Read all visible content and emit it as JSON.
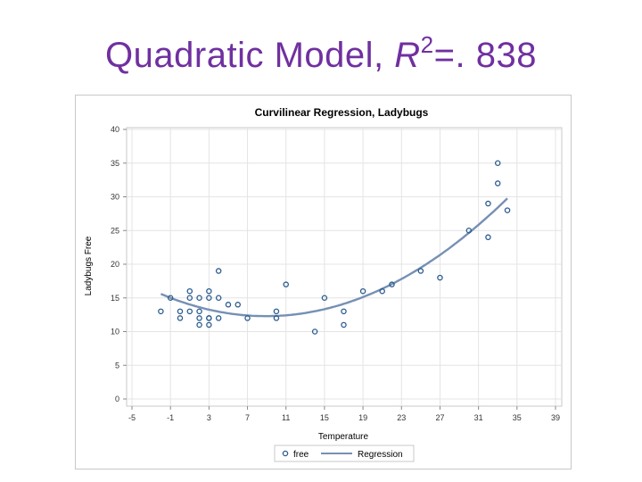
{
  "slide": {
    "title_prefix": "Quadratic Model, ",
    "title_r": "R",
    "title_sup": "2",
    "title_suffix": "=. 838",
    "title_color": "#7030a0"
  },
  "chart_data": {
    "type": "scatter",
    "title": "Curvilinear Regression, Ladybugs",
    "xlabel": "Temperature",
    "ylabel": "Ladybugs Free",
    "xlim": [
      -5,
      39
    ],
    "ylim": [
      0,
      40
    ],
    "xticks": [
      -5,
      -1,
      3,
      7,
      11,
      15,
      19,
      23,
      27,
      31,
      35,
      39
    ],
    "yticks": [
      0,
      5,
      10,
      15,
      20,
      25,
      30,
      35,
      40
    ],
    "grid": true,
    "legend_position": "bottom",
    "series": [
      {
        "name": "free",
        "kind": "points",
        "color": "#2a5b8f",
        "points": [
          [
            -2,
            13
          ],
          [
            -1,
            15
          ],
          [
            0,
            13
          ],
          [
            0,
            12
          ],
          [
            1,
            16
          ],
          [
            1,
            15
          ],
          [
            1,
            13
          ],
          [
            2,
            15
          ],
          [
            2,
            13
          ],
          [
            2,
            12
          ],
          [
            2,
            11
          ],
          [
            3,
            16
          ],
          [
            3,
            15
          ],
          [
            3,
            12
          ],
          [
            3,
            12
          ],
          [
            3,
            11
          ],
          [
            4,
            19
          ],
          [
            4,
            15
          ],
          [
            4,
            12
          ],
          [
            5,
            14
          ],
          [
            6,
            14
          ],
          [
            7,
            12
          ],
          [
            10,
            13
          ],
          [
            10,
            12
          ],
          [
            11,
            17
          ],
          [
            14,
            10
          ],
          [
            15,
            15
          ],
          [
            17,
            13
          ],
          [
            17,
            11
          ],
          [
            19,
            16
          ],
          [
            21,
            16
          ],
          [
            22,
            17
          ],
          [
            25,
            19
          ],
          [
            27,
            18
          ],
          [
            30,
            25
          ],
          [
            32,
            29
          ],
          [
            32,
            24
          ],
          [
            33,
            35
          ],
          [
            33,
            32
          ],
          [
            34,
            28
          ]
        ]
      },
      {
        "name": "Regression",
        "kind": "curve",
        "color": "#7690b4",
        "x_range": [
          -2,
          34
        ],
        "coefficients": {
          "a": 0.02773,
          "b": -0.4935,
          "c": 14.49
        }
      }
    ]
  }
}
